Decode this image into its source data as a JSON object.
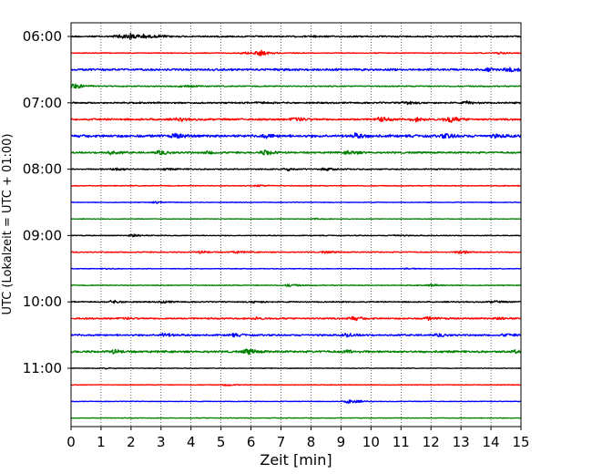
{
  "chart_data": {
    "type": "line",
    "title": "",
    "xlabel": "Zeit  [min]",
    "ylabel": "UTC (Lokalzeit = UTC + 01:00)",
    "xlim": [
      0,
      15
    ],
    "x_ticks": [
      "0",
      "1",
      "2",
      "3",
      "4",
      "5",
      "6",
      "7",
      "8",
      "9",
      "10",
      "11",
      "12",
      "13",
      "14",
      "15"
    ],
    "y_ticks": [
      {
        "row": 0,
        "label": "06:00"
      },
      {
        "row": 4,
        "label": "07:00"
      },
      {
        "row": 8,
        "label": "08:00"
      },
      {
        "row": 12,
        "label": "09:00"
      },
      {
        "row": 16,
        "label": "10:00"
      },
      {
        "row": 20,
        "label": "11:00"
      }
    ],
    "grid": "vertical dotted at each minute",
    "trace_minutes": 15,
    "colors": [
      "#000000",
      "#ff0000",
      "#0000ff",
      "#008000"
    ],
    "series": [
      {
        "start": "06:00",
        "color": "#000000",
        "noise": 0.9,
        "events": [
          [
            1.6,
            2.5
          ],
          [
            2.0,
            3.2
          ],
          [
            2.4,
            1.5
          ],
          [
            3.0,
            1.2
          ],
          [
            8.1,
            0.6
          ]
        ]
      },
      {
        "start": "06:15",
        "color": "#ff0000",
        "noise": 0.5,
        "events": [
          [
            6.3,
            3.2
          ],
          [
            5.8,
            1.2
          ],
          [
            14.3,
            1.2
          ]
        ]
      },
      {
        "start": "06:30",
        "color": "#0000ff",
        "noise": 1.2,
        "events": [
          [
            14.6,
            3.0
          ],
          [
            13.9,
            1.3
          ],
          [
            7.0,
            0.6
          ]
        ]
      },
      {
        "start": "06:45",
        "color": "#008000",
        "noise": 0.7,
        "events": [
          [
            0.1,
            3.5
          ],
          [
            3.8,
            1.2
          ]
        ]
      },
      {
        "start": "07:00",
        "color": "#000000",
        "noise": 0.9,
        "events": [
          [
            11.2,
            1.8
          ],
          [
            13.2,
            1.3
          ],
          [
            6.3,
            0.8
          ]
        ]
      },
      {
        "start": "07:15",
        "color": "#ff0000",
        "noise": 1.1,
        "events": [
          [
            12.6,
            4.0
          ],
          [
            10.3,
            2.8
          ],
          [
            7.5,
            2.2
          ],
          [
            3.6,
            1.6
          ],
          [
            11.5,
            2.0
          ]
        ]
      },
      {
        "start": "07:30",
        "color": "#0000ff",
        "noise": 1.5,
        "events": [
          [
            3.5,
            2.2
          ],
          [
            9.5,
            2.5
          ],
          [
            12.5,
            2.2
          ],
          [
            6.5,
            1.8
          ],
          [
            14.2,
            1.5
          ]
        ]
      },
      {
        "start": "07:45",
        "color": "#008000",
        "noise": 1.0,
        "events": [
          [
            6.5,
            3.0
          ],
          [
            1.3,
            2.2
          ],
          [
            3.0,
            2.2
          ],
          [
            9.3,
            2.5
          ],
          [
            4.6,
            1.5
          ]
        ]
      },
      {
        "start": "08:00",
        "color": "#000000",
        "noise": 0.7,
        "events": [
          [
            1.5,
            1.8
          ],
          [
            7.2,
            1.6
          ],
          [
            8.5,
            1.4
          ],
          [
            3.2,
            1.0
          ]
        ]
      },
      {
        "start": "08:15",
        "color": "#ff0000",
        "noise": 0.5,
        "events": [
          [
            6.3,
            1.0
          ]
        ]
      },
      {
        "start": "08:30",
        "color": "#0000ff",
        "noise": 0.4,
        "events": [
          [
            2.8,
            1.0
          ]
        ]
      },
      {
        "start": "08:45",
        "color": "#008000",
        "noise": 0.4,
        "events": [
          [
            8.2,
            0.8
          ]
        ]
      },
      {
        "start": "09:00",
        "color": "#000000",
        "noise": 0.5,
        "events": [
          [
            2.1,
            1.8
          ],
          [
            10.8,
            0.8
          ]
        ]
      },
      {
        "start": "09:15",
        "color": "#ff0000",
        "noise": 0.6,
        "events": [
          [
            13.0,
            2.0
          ],
          [
            4.3,
            1.4
          ],
          [
            5.5,
            1.2
          ],
          [
            8.5,
            1.0
          ]
        ]
      },
      {
        "start": "09:30",
        "color": "#0000ff",
        "noise": 0.4,
        "events": [
          [
            11.2,
            0.8
          ],
          [
            1.2,
            0.6
          ]
        ]
      },
      {
        "start": "09:45",
        "color": "#008000",
        "noise": 0.5,
        "events": [
          [
            7.3,
            1.6
          ],
          [
            12.0,
            1.2
          ]
        ]
      },
      {
        "start": "10:00",
        "color": "#000000",
        "noise": 0.7,
        "events": [
          [
            1.4,
            1.6
          ],
          [
            3.1,
            1.3
          ],
          [
            6.1,
            1.1
          ],
          [
            14.1,
            1.2
          ]
        ]
      },
      {
        "start": "10:15",
        "color": "#ff0000",
        "noise": 0.9,
        "events": [
          [
            9.4,
            2.4
          ],
          [
            11.9,
            1.8
          ],
          [
            14.3,
            1.5
          ],
          [
            6.2,
            1.3
          ],
          [
            1.8,
            1.0
          ]
        ]
      },
      {
        "start": "10:30",
        "color": "#0000ff",
        "noise": 1.0,
        "events": [
          [
            3.1,
            2.2
          ],
          [
            5.4,
            1.6
          ],
          [
            9.2,
            1.8
          ],
          [
            12.3,
            1.5
          ],
          [
            14.5,
            1.5
          ]
        ]
      },
      {
        "start": "10:45",
        "color": "#008000",
        "noise": 1.2,
        "events": [
          [
            5.9,
            3.0
          ],
          [
            1.4,
            2.0
          ],
          [
            9.2,
            1.5
          ],
          [
            14.9,
            1.6
          ]
        ]
      },
      {
        "start": "11:00",
        "color": "#000000",
        "noise": 0.4,
        "events": [
          [
            1.2,
            0.8
          ]
        ]
      },
      {
        "start": "11:15",
        "color": "#ff0000",
        "noise": 0.4,
        "events": [
          [
            5.2,
            1.0
          ]
        ]
      },
      {
        "start": "11:30",
        "color": "#0000ff",
        "noise": 0.4,
        "events": [
          [
            9.3,
            3.2
          ]
        ]
      },
      {
        "start": "11:45",
        "color": "#008000",
        "noise": 0.4,
        "events": []
      }
    ]
  }
}
